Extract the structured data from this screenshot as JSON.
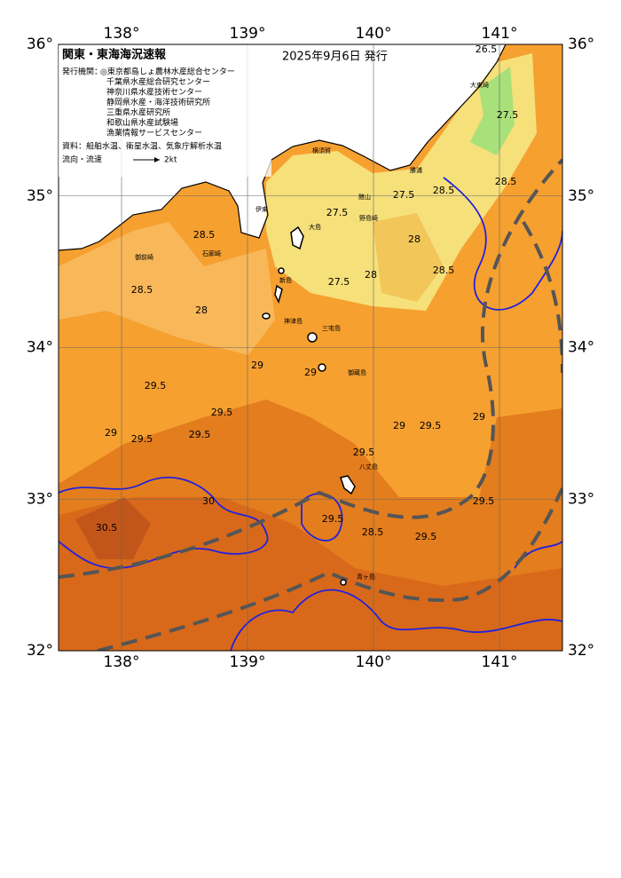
{
  "header": {
    "title": "関東・東海海況速報",
    "issued": "2025年9月6日 発行"
  },
  "credits": {
    "label": "発行機関：",
    "organizations": [
      "◎東京都島しょ農林水産総合センター",
      "千葉県水産総合研究センター",
      "神奈川県水産技術センター",
      "静岡県水産・海洋技術研究所",
      "三重県水産研究所",
      "和歌山県水産試験場",
      "漁業情報サービスセンター"
    ],
    "sources": "資料：船舶水温、衛星水温、気象庁解析水温"
  },
  "legend": {
    "label": "流向・流速",
    "speed": "2kt"
  },
  "axes": {
    "lon": [
      {
        "value": 138,
        "label": "138°"
      },
      {
        "value": 139,
        "label": "139°"
      },
      {
        "value": 140,
        "label": "140°"
      },
      {
        "value": 141,
        "label": "141°"
      }
    ],
    "lat": [
      {
        "value": 36,
        "label": "36°"
      },
      {
        "value": 35,
        "label": "35°"
      },
      {
        "value": 34,
        "label": "34°"
      },
      {
        "value": 33,
        "label": "33°"
      },
      {
        "value": 32,
        "label": "32°"
      }
    ]
  },
  "contour_labels": [
    "26.5",
    "27.5",
    "27.5",
    "27.5",
    "27.5",
    "28.5",
    "28",
    "28",
    "28.5",
    "28.5",
    "29",
    "29",
    "29.5",
    "29.5",
    "29.5",
    "29.5",
    "29.5",
    "29.5",
    "30.5",
    "30",
    "29",
    "29.5",
    "29",
    "28.5",
    "29.5",
    "29.5",
    "29",
    "28.5",
    "28",
    "28.5"
  ],
  "places": [
    "大島",
    "新島",
    "神津島",
    "三宅島",
    "御蔵島",
    "八丈島",
    "青ヶ島",
    "野島崎",
    "館山",
    "伊東",
    "石廊崎",
    "御前崎",
    "大東崎",
    "勝浦",
    "横須賀"
  ]
}
